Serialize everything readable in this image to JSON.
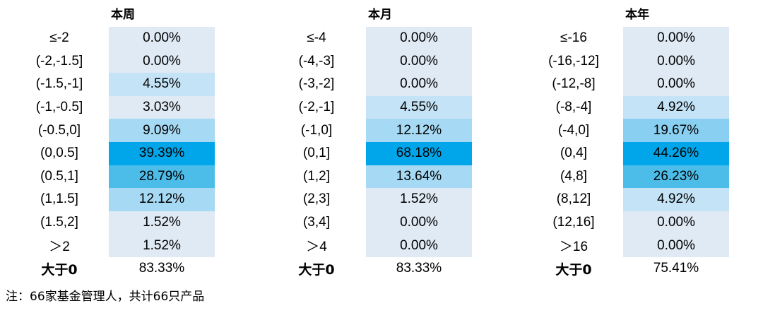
{
  "colors": {
    "base": "#dfeaf5",
    "levels": [
      "#dfeaf5",
      "#c5e3f6",
      "#a6d9f3",
      "#88cff1",
      "#4cbde9",
      "#00a6e9"
    ]
  },
  "chart_data": [
    {
      "type": "table",
      "title": "本周",
      "categories": [
        "≤-2",
        "(-2,-1.5]",
        "(-1.5,-1]",
        "(-1,-0.5]",
        "(-0.5,0]",
        "(0,0.5]",
        "(0.5,1]",
        "(1,1.5]",
        "(1.5,2]",
        "＞2"
      ],
      "values": [
        "0.00%",
        "0.00%",
        "4.55%",
        "3.03%",
        "9.09%",
        "39.39%",
        "28.79%",
        "12.12%",
        "1.52%",
        "1.52%"
      ],
      "total_label": "大于0",
      "total_value": "83.33%"
    },
    {
      "type": "table",
      "title": "本月",
      "categories": [
        "≤-4",
        "(-4,-3]",
        "(-3,-2]",
        "(-2,-1]",
        "(-1,0]",
        "(0,1]",
        "(1,2]",
        "(2,3]",
        "(3,4]",
        "＞4"
      ],
      "values": [
        "0.00%",
        "0.00%",
        "0.00%",
        "4.55%",
        "12.12%",
        "68.18%",
        "13.64%",
        "1.52%",
        "0.00%",
        "0.00%"
      ],
      "total_label": "大于0",
      "total_value": "83.33%"
    },
    {
      "type": "table",
      "title": "本年",
      "categories": [
        "≤-16",
        "(-16,-12]",
        "(-12,-8]",
        "(-8,-4]",
        "(-4,0]",
        "(0,4]",
        "(4,8]",
        "(8,12]",
        "(12,16]",
        "＞16"
      ],
      "values": [
        "0.00%",
        "0.00%",
        "0.00%",
        "4.92%",
        "19.67%",
        "44.26%",
        "26.23%",
        "4.92%",
        "0.00%",
        "0.00%"
      ],
      "total_label": "大于0",
      "total_value": "75.41%"
    }
  ],
  "note": "注：66家基金管理人，共计66只产品"
}
